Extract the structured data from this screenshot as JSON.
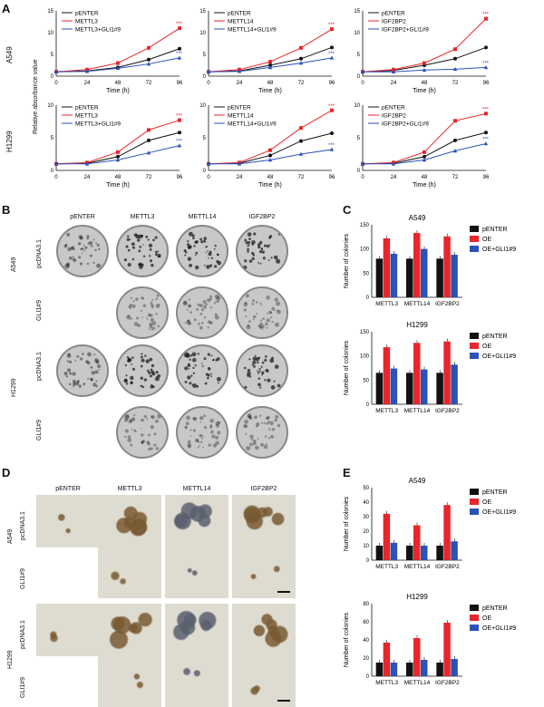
{
  "figure": {
    "panel_letters": [
      "A",
      "B",
      "C",
      "D",
      "E"
    ],
    "panel_a": {
      "row_labels": [
        "A549",
        "H1299"
      ],
      "y_axis_label": "Relative absorbance value",
      "x_axis_label": "Time (h)",
      "x_ticks": [
        "0",
        "24",
        "48",
        "72",
        "96"
      ],
      "y_ticks": [
        "0",
        "5",
        "10",
        "15"
      ],
      "significance": "***"
    },
    "panel_b": {
      "col_headers": [
        "pENTER",
        "METTL3",
        "METTL14",
        "IGF2BP2"
      ],
      "groups": [
        "A549",
        "H1299"
      ],
      "row_labels": [
        "pcDNA3.1",
        "GLI1#9"
      ]
    },
    "panel_d": {
      "col_headers": [
        "pENTER",
        "METTL3",
        "METTL14",
        "IGF2BP2"
      ],
      "groups": [
        "A549",
        "H1299"
      ],
      "row_labels": [
        "pcDNA3.1",
        "GLI1#9"
      ]
    },
    "panel_c": {
      "y_axis_label": "Number of colonies"
    },
    "panel_e": {
      "y_axis_label": "Number of colonies"
    },
    "bar_legend": [
      "pENTER",
      "OE",
      "OE+GLI1#9"
    ],
    "colors": {
      "black": "#111111",
      "red": "#e8262b",
      "blue": "#2a52b8"
    }
  },
  "chart_data": [
    {
      "type": "line",
      "panel": "A",
      "row": "A549",
      "x": [
        0,
        24,
        48,
        72,
        96
      ],
      "ylim": [
        0,
        15
      ],
      "series": [
        {
          "name": "pENTER",
          "values": [
            1,
            1.2,
            2.0,
            3.8,
            6.3
          ]
        },
        {
          "name": "METTL3",
          "values": [
            1,
            1.5,
            3.0,
            6.5,
            11.0
          ]
        },
        {
          "name": "METTL3+GLI1#9",
          "values": [
            1,
            1.1,
            1.8,
            2.8,
            4.2
          ]
        }
      ]
    },
    {
      "type": "line",
      "panel": "A",
      "row": "A549",
      "x": [
        0,
        24,
        48,
        72,
        96
      ],
      "ylim": [
        0,
        15
      ],
      "series": [
        {
          "name": "pENTER",
          "values": [
            1,
            1.2,
            2.5,
            4.0,
            6.6
          ]
        },
        {
          "name": "METTL14",
          "values": [
            1,
            1.5,
            3.3,
            6.5,
            10.8
          ]
        },
        {
          "name": "METTL14+GLI1#9",
          "values": [
            1,
            1.1,
            2.0,
            3.0,
            4.2
          ]
        }
      ]
    },
    {
      "type": "line",
      "panel": "A",
      "row": "A549",
      "x": [
        0,
        24,
        48,
        72,
        96
      ],
      "ylim": [
        0,
        15
      ],
      "series": [
        {
          "name": "pENTER",
          "values": [
            1,
            1.3,
            2.5,
            4.0,
            6.6
          ]
        },
        {
          "name": "IGF2BP2",
          "values": [
            1,
            1.5,
            3.0,
            6.2,
            13.2
          ]
        },
        {
          "name": "IGF2BP2+GLI1#9",
          "values": [
            1,
            1.0,
            1.4,
            1.6,
            2.0
          ]
        }
      ]
    },
    {
      "type": "line",
      "panel": "A",
      "row": "H1299",
      "x": [
        0,
        24,
        48,
        72,
        96
      ],
      "ylim": [
        0,
        10
      ],
      "series": [
        {
          "name": "pENTER",
          "values": [
            1,
            1.1,
            2.1,
            4.6,
            5.8
          ]
        },
        {
          "name": "METTL3",
          "values": [
            1,
            1.2,
            2.8,
            6.2,
            7.7
          ]
        },
        {
          "name": "METTL3+GLI1#9",
          "values": [
            1,
            1.0,
            1.6,
            2.7,
            3.8
          ]
        }
      ]
    },
    {
      "type": "line",
      "panel": "A",
      "row": "H1299",
      "x": [
        0,
        24,
        48,
        72,
        96
      ],
      "ylim": [
        0,
        10
      ],
      "series": [
        {
          "name": "pENTER",
          "values": [
            1,
            1.1,
            2.3,
            4.5,
            5.7
          ]
        },
        {
          "name": "METTL14",
          "values": [
            1,
            1.2,
            3.1,
            6.5,
            9.2
          ]
        },
        {
          "name": "METTL14+GLI1#9",
          "values": [
            1,
            1.0,
            1.6,
            2.5,
            3.2
          ]
        }
      ]
    },
    {
      "type": "line",
      "panel": "A",
      "row": "H1299",
      "x": [
        0,
        24,
        48,
        72,
        96
      ],
      "ylim": [
        0,
        10
      ],
      "series": [
        {
          "name": "pENTER",
          "values": [
            1,
            1.1,
            2.1,
            4.6,
            5.8
          ]
        },
        {
          "name": "IGF2BP2",
          "values": [
            1,
            1.2,
            2.8,
            7.6,
            8.7
          ]
        },
        {
          "name": "IGF2BP2+GLI1#9",
          "values": [
            1,
            1.0,
            1.6,
            3.0,
            4.1
          ]
        }
      ]
    },
    {
      "type": "bar",
      "panel": "C",
      "title": "A549",
      "ylabel": "Number of colonies",
      "ylim": [
        0,
        150
      ],
      "categories": [
        "METTL3",
        "METTL14",
        "IGF2BP2"
      ],
      "series": [
        {
          "name": "pENTER",
          "values": [
            80,
            80,
            80
          ]
        },
        {
          "name": "OE",
          "values": [
            122,
            133,
            126
          ]
        },
        {
          "name": "OE+GLI1#9",
          "values": [
            90,
            100,
            88
          ]
        }
      ]
    },
    {
      "type": "bar",
      "panel": "C",
      "title": "H1299",
      "ylabel": "Number of colonies",
      "ylim": [
        0,
        150
      ],
      "categories": [
        "METTL3",
        "METTL14",
        "IGF2BP2"
      ],
      "series": [
        {
          "name": "pENTER",
          "values": [
            65,
            65,
            65
          ]
        },
        {
          "name": "OE",
          "values": [
            118,
            127,
            130
          ]
        },
        {
          "name": "OE+GLI1#9",
          "values": [
            74,
            72,
            82
          ]
        }
      ]
    },
    {
      "type": "bar",
      "panel": "E",
      "title": "A549",
      "ylabel": "Number of colonies",
      "ylim": [
        0,
        50
      ],
      "categories": [
        "METTL3",
        "METTL14",
        "IGF2BP2"
      ],
      "series": [
        {
          "name": "pENTER",
          "values": [
            10,
            10,
            10
          ]
        },
        {
          "name": "OE",
          "values": [
            32,
            24,
            38
          ]
        },
        {
          "name": "OE+GLI1#9",
          "values": [
            12,
            10,
            13
          ]
        }
      ]
    },
    {
      "type": "bar",
      "panel": "E",
      "title": "H1299",
      "ylabel": "Number of colonies",
      "ylim": [
        0,
        80
      ],
      "categories": [
        "METTL3",
        "METTL14",
        "IGF2BP2"
      ],
      "series": [
        {
          "name": "pENTER",
          "values": [
            15,
            15,
            15
          ]
        },
        {
          "name": "OE",
          "values": [
            37,
            42,
            59
          ]
        },
        {
          "name": "OE+GLI1#9",
          "values": [
            15,
            18,
            19
          ]
        }
      ]
    }
  ]
}
